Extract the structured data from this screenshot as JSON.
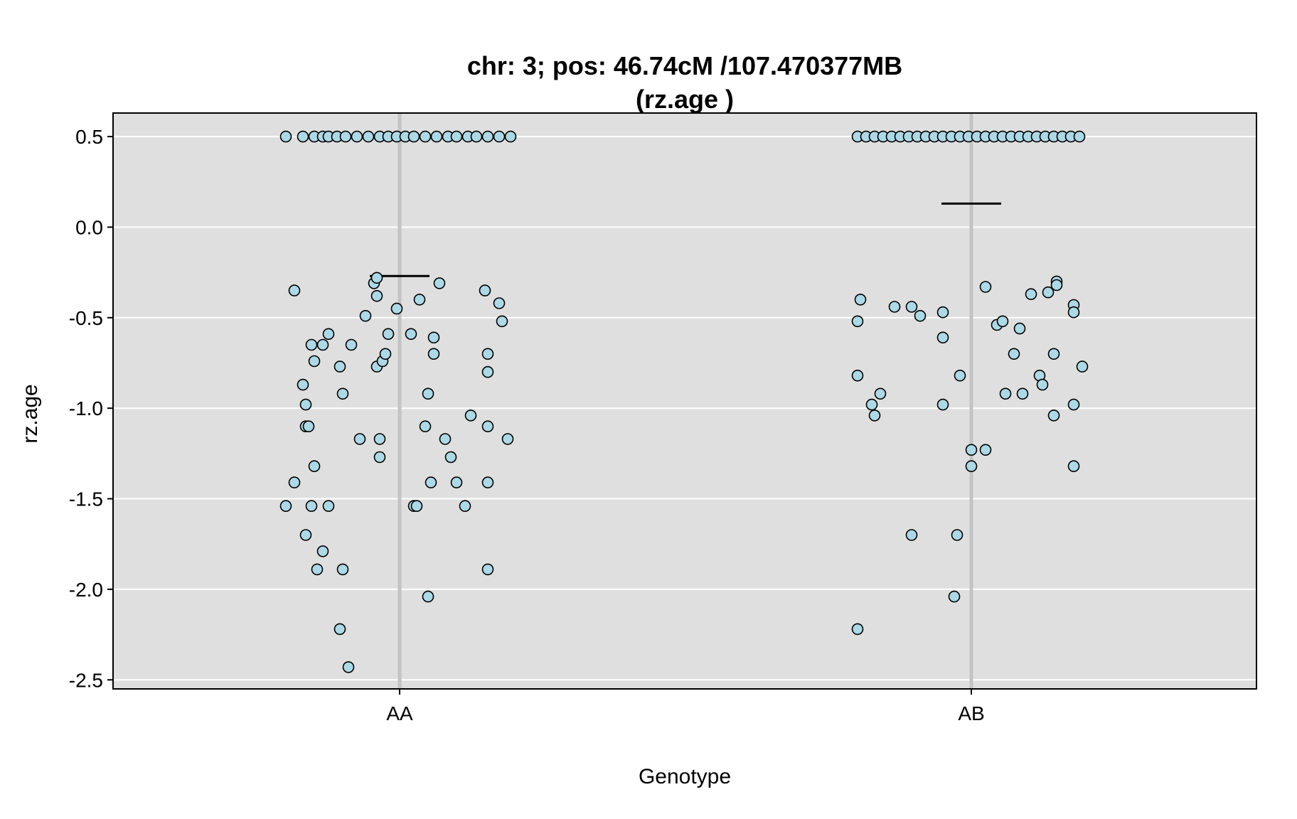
{
  "chart_data": {
    "type": "scatter",
    "title_line1": "chr: 3; pos: 46.74cM /107.470377MB",
    "title_line2": "(rz.age )",
    "xlabel": "Genotype",
    "ylabel": "rz.age",
    "categories": [
      "AA",
      "AB"
    ],
    "ylim": [
      -2.55,
      0.63
    ],
    "yticks": [
      "0.5",
      "0.0",
      "-0.5",
      "-1.0",
      "-1.5",
      "-2.0",
      "-2.5"
    ],
    "ytick_values": [
      0.5,
      0.0,
      -0.5,
      -1.0,
      -1.5,
      -2.0,
      -2.5
    ],
    "grid": true,
    "panel_background": "#dfdfdf",
    "point_fill": "#add8e6",
    "point_stroke": "#000000",
    "means": [
      {
        "category": "AA",
        "value": -0.27
      },
      {
        "category": "AB",
        "value": 0.13
      }
    ],
    "points": [
      {
        "category": "AA",
        "jitter": -0.4,
        "y": 0.5
      },
      {
        "category": "AA",
        "jitter": -0.34,
        "y": 0.5
      },
      {
        "category": "AA",
        "jitter": -0.3,
        "y": 0.5
      },
      {
        "category": "AA",
        "jitter": -0.27,
        "y": 0.5
      },
      {
        "category": "AA",
        "jitter": -0.25,
        "y": 0.5
      },
      {
        "category": "AA",
        "jitter": -0.22,
        "y": 0.5
      },
      {
        "category": "AA",
        "jitter": -0.19,
        "y": 0.5
      },
      {
        "category": "AA",
        "jitter": -0.15,
        "y": 0.5
      },
      {
        "category": "AA",
        "jitter": -0.11,
        "y": 0.5
      },
      {
        "category": "AA",
        "jitter": -0.07,
        "y": 0.5
      },
      {
        "category": "AA",
        "jitter": -0.04,
        "y": 0.5
      },
      {
        "category": "AA",
        "jitter": -0.01,
        "y": 0.5
      },
      {
        "category": "AA",
        "jitter": 0.02,
        "y": 0.5
      },
      {
        "category": "AA",
        "jitter": 0.05,
        "y": 0.5
      },
      {
        "category": "AA",
        "jitter": 0.09,
        "y": 0.5
      },
      {
        "category": "AA",
        "jitter": 0.13,
        "y": 0.5
      },
      {
        "category": "AA",
        "jitter": 0.17,
        "y": 0.5
      },
      {
        "category": "AA",
        "jitter": 0.2,
        "y": 0.5
      },
      {
        "category": "AA",
        "jitter": 0.24,
        "y": 0.5
      },
      {
        "category": "AA",
        "jitter": 0.27,
        "y": 0.5
      },
      {
        "category": "AA",
        "jitter": 0.31,
        "y": 0.5
      },
      {
        "category": "AA",
        "jitter": 0.35,
        "y": 0.5
      },
      {
        "category": "AA",
        "jitter": 0.39,
        "y": 0.5
      },
      {
        "category": "AA",
        "jitter": -0.37,
        "y": -0.35
      },
      {
        "category": "AA",
        "jitter": -0.37,
        "y": -1.41
      },
      {
        "category": "AA",
        "jitter": -0.4,
        "y": -1.54
      },
      {
        "category": "AA",
        "jitter": -0.34,
        "y": -0.87
      },
      {
        "category": "AA",
        "jitter": -0.33,
        "y": -0.98
      },
      {
        "category": "AA",
        "jitter": -0.33,
        "y": -1.1
      },
      {
        "category": "AA",
        "jitter": -0.32,
        "y": -1.1
      },
      {
        "category": "AA",
        "jitter": -0.33,
        "y": -1.7
      },
      {
        "category": "AA",
        "jitter": -0.31,
        "y": -0.65
      },
      {
        "category": "AA",
        "jitter": -0.3,
        "y": -0.74
      },
      {
        "category": "AA",
        "jitter": -0.3,
        "y": -1.32
      },
      {
        "category": "AA",
        "jitter": -0.31,
        "y": -1.54
      },
      {
        "category": "AA",
        "jitter": -0.29,
        "y": -1.89
      },
      {
        "category": "AA",
        "jitter": -0.27,
        "y": -0.65
      },
      {
        "category": "AA",
        "jitter": -0.27,
        "y": -1.79
      },
      {
        "category": "AA",
        "jitter": -0.25,
        "y": -0.59
      },
      {
        "category": "AA",
        "jitter": -0.25,
        "y": -1.54
      },
      {
        "category": "AA",
        "jitter": -0.21,
        "y": -0.77
      },
      {
        "category": "AA",
        "jitter": -0.21,
        "y": -2.22
      },
      {
        "category": "AA",
        "jitter": -0.2,
        "y": -0.92
      },
      {
        "category": "AA",
        "jitter": -0.2,
        "y": -1.89
      },
      {
        "category": "AA",
        "jitter": -0.17,
        "y": -0.65
      },
      {
        "category": "AA",
        "jitter": -0.18,
        "y": -2.43
      },
      {
        "category": "AA",
        "jitter": -0.14,
        "y": -1.17
      },
      {
        "category": "AA",
        "jitter": -0.12,
        "y": -0.49
      },
      {
        "category": "AA",
        "jitter": -0.09,
        "y": -0.31
      },
      {
        "category": "AA",
        "jitter": -0.08,
        "y": -0.28
      },
      {
        "category": "AA",
        "jitter": -0.08,
        "y": -0.38
      },
      {
        "category": "AA",
        "jitter": -0.08,
        "y": -0.77
      },
      {
        "category": "AA",
        "jitter": -0.07,
        "y": -1.27
      },
      {
        "category": "AA",
        "jitter": -0.07,
        "y": -1.17
      },
      {
        "category": "AA",
        "jitter": -0.06,
        "y": -0.74
      },
      {
        "category": "AA",
        "jitter": -0.05,
        "y": -0.7
      },
      {
        "category": "AA",
        "jitter": -0.04,
        "y": -0.59
      },
      {
        "category": "AA",
        "jitter": -0.01,
        "y": -0.45
      },
      {
        "category": "AA",
        "jitter": 0.04,
        "y": -0.59
      },
      {
        "category": "AA",
        "jitter": 0.05,
        "y": -1.54
      },
      {
        "category": "AA",
        "jitter": 0.06,
        "y": -1.54
      },
      {
        "category": "AA",
        "jitter": 0.07,
        "y": -0.4
      },
      {
        "category": "AA",
        "jitter": 0.09,
        "y": -1.1
      },
      {
        "category": "AA",
        "jitter": 0.1,
        "y": -0.92
      },
      {
        "category": "AA",
        "jitter": 0.1,
        "y": -2.04
      },
      {
        "category": "AA",
        "jitter": 0.11,
        "y": -1.41
      },
      {
        "category": "AA",
        "jitter": 0.12,
        "y": -0.7
      },
      {
        "category": "AA",
        "jitter": 0.12,
        "y": -0.61
      },
      {
        "category": "AA",
        "jitter": 0.14,
        "y": -0.31
      },
      {
        "category": "AA",
        "jitter": 0.16,
        "y": -1.17
      },
      {
        "category": "AA",
        "jitter": 0.18,
        "y": -1.27
      },
      {
        "category": "AA",
        "jitter": 0.2,
        "y": -1.41
      },
      {
        "category": "AA",
        "jitter": 0.23,
        "y": -1.54
      },
      {
        "category": "AA",
        "jitter": 0.25,
        "y": -1.04
      },
      {
        "category": "AA",
        "jitter": 0.3,
        "y": -0.35
      },
      {
        "category": "AA",
        "jitter": 0.31,
        "y": -0.7
      },
      {
        "category": "AA",
        "jitter": 0.31,
        "y": -0.8
      },
      {
        "category": "AA",
        "jitter": 0.31,
        "y": -1.89
      },
      {
        "category": "AA",
        "jitter": 0.31,
        "y": -1.1
      },
      {
        "category": "AA",
        "jitter": 0.31,
        "y": -1.41
      },
      {
        "category": "AA",
        "jitter": 0.35,
        "y": -0.42
      },
      {
        "category": "AA",
        "jitter": 0.36,
        "y": -0.52
      },
      {
        "category": "AA",
        "jitter": 0.38,
        "y": -1.17
      },
      {
        "category": "AB",
        "jitter": -0.4,
        "y": 0.5
      },
      {
        "category": "AB",
        "jitter": -0.37,
        "y": 0.5
      },
      {
        "category": "AB",
        "jitter": -0.34,
        "y": 0.5
      },
      {
        "category": "AB",
        "jitter": -0.31,
        "y": 0.5
      },
      {
        "category": "AB",
        "jitter": -0.28,
        "y": 0.5
      },
      {
        "category": "AB",
        "jitter": -0.25,
        "y": 0.5
      },
      {
        "category": "AB",
        "jitter": -0.22,
        "y": 0.5
      },
      {
        "category": "AB",
        "jitter": -0.19,
        "y": 0.5
      },
      {
        "category": "AB",
        "jitter": -0.16,
        "y": 0.5
      },
      {
        "category": "AB",
        "jitter": -0.13,
        "y": 0.5
      },
      {
        "category": "AB",
        "jitter": -0.1,
        "y": 0.5
      },
      {
        "category": "AB",
        "jitter": -0.07,
        "y": 0.5
      },
      {
        "category": "AB",
        "jitter": -0.04,
        "y": 0.5
      },
      {
        "category": "AB",
        "jitter": -0.01,
        "y": 0.5
      },
      {
        "category": "AB",
        "jitter": 0.02,
        "y": 0.5
      },
      {
        "category": "AB",
        "jitter": 0.05,
        "y": 0.5
      },
      {
        "category": "AB",
        "jitter": 0.08,
        "y": 0.5
      },
      {
        "category": "AB",
        "jitter": 0.11,
        "y": 0.5
      },
      {
        "category": "AB",
        "jitter": 0.14,
        "y": 0.5
      },
      {
        "category": "AB",
        "jitter": 0.17,
        "y": 0.5
      },
      {
        "category": "AB",
        "jitter": 0.2,
        "y": 0.5
      },
      {
        "category": "AB",
        "jitter": 0.23,
        "y": 0.5
      },
      {
        "category": "AB",
        "jitter": 0.26,
        "y": 0.5
      },
      {
        "category": "AB",
        "jitter": 0.29,
        "y": 0.5
      },
      {
        "category": "AB",
        "jitter": 0.32,
        "y": 0.5
      },
      {
        "category": "AB",
        "jitter": 0.35,
        "y": 0.5
      },
      {
        "category": "AB",
        "jitter": 0.38,
        "y": 0.5
      },
      {
        "category": "AB",
        "jitter": -0.39,
        "y": -0.4
      },
      {
        "category": "AB",
        "jitter": -0.4,
        "y": -0.52
      },
      {
        "category": "AB",
        "jitter": -0.4,
        "y": -0.82
      },
      {
        "category": "AB",
        "jitter": -0.4,
        "y": -2.22
      },
      {
        "category": "AB",
        "jitter": -0.35,
        "y": -0.98
      },
      {
        "category": "AB",
        "jitter": -0.34,
        "y": -1.04
      },
      {
        "category": "AB",
        "jitter": -0.32,
        "y": -0.92
      },
      {
        "category": "AB",
        "jitter": -0.27,
        "y": -0.44
      },
      {
        "category": "AB",
        "jitter": -0.21,
        "y": -0.44
      },
      {
        "category": "AB",
        "jitter": -0.21,
        "y": -1.7
      },
      {
        "category": "AB",
        "jitter": -0.18,
        "y": -0.49
      },
      {
        "category": "AB",
        "jitter": -0.1,
        "y": -0.47
      },
      {
        "category": "AB",
        "jitter": -0.1,
        "y": -0.61
      },
      {
        "category": "AB",
        "jitter": -0.1,
        "y": -0.98
      },
      {
        "category": "AB",
        "jitter": -0.06,
        "y": -2.04
      },
      {
        "category": "AB",
        "jitter": -0.05,
        "y": -1.7
      },
      {
        "category": "AB",
        "jitter": -0.04,
        "y": -0.82
      },
      {
        "category": "AB",
        "jitter": 0.0,
        "y": -1.23
      },
      {
        "category": "AB",
        "jitter": 0.0,
        "y": -1.32
      },
      {
        "category": "AB",
        "jitter": 0.05,
        "y": -0.33
      },
      {
        "category": "AB",
        "jitter": 0.05,
        "y": -1.23
      },
      {
        "category": "AB",
        "jitter": 0.09,
        "y": -0.54
      },
      {
        "category": "AB",
        "jitter": 0.11,
        "y": -0.52
      },
      {
        "category": "AB",
        "jitter": 0.12,
        "y": -0.92
      },
      {
        "category": "AB",
        "jitter": 0.15,
        "y": -0.7
      },
      {
        "category": "AB",
        "jitter": 0.17,
        "y": -0.56
      },
      {
        "category": "AB",
        "jitter": 0.18,
        "y": -0.92
      },
      {
        "category": "AB",
        "jitter": 0.21,
        "y": -0.37
      },
      {
        "category": "AB",
        "jitter": 0.24,
        "y": -0.82
      },
      {
        "category": "AB",
        "jitter": 0.25,
        "y": -0.87
      },
      {
        "category": "AB",
        "jitter": 0.27,
        "y": -0.36
      },
      {
        "category": "AB",
        "jitter": 0.29,
        "y": -1.04
      },
      {
        "category": "AB",
        "jitter": 0.3,
        "y": -0.3
      },
      {
        "category": "AB",
        "jitter": 0.3,
        "y": -0.32
      },
      {
        "category": "AB",
        "jitter": 0.29,
        "y": -0.7
      },
      {
        "category": "AB",
        "jitter": 0.36,
        "y": -0.43
      },
      {
        "category": "AB",
        "jitter": 0.36,
        "y": -0.47
      },
      {
        "category": "AB",
        "jitter": 0.36,
        "y": -0.98
      },
      {
        "category": "AB",
        "jitter": 0.36,
        "y": -1.32
      },
      {
        "category": "AB",
        "jitter": 0.39,
        "y": -0.77
      }
    ]
  }
}
